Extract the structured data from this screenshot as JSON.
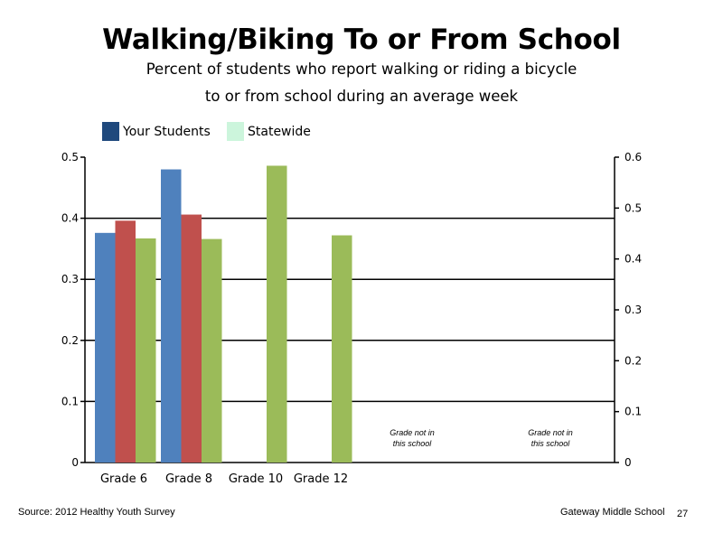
{
  "title": "Walking/Biking To or From School",
  "subtitle_line1": "Percent of students who report walking or riding a bicycle",
  "subtitle_line2": "to or from school during an average week",
  "legend": {
    "items": [
      {
        "label": "Your Students",
        "color": "#1f497d"
      },
      {
        "label": "Statewide",
        "color": "#ccf5dc"
      }
    ]
  },
  "chart_data": {
    "type": "bar",
    "categories": [
      "Grade 6",
      "Grade 8",
      "Grade 10",
      "Grade 12"
    ],
    "series": [
      {
        "values": [
          0.376,
          0.48,
          null,
          null
        ],
        "color": "#4f81bd"
      },
      {
        "values": [
          0.396,
          0.406,
          null,
          null
        ],
        "color": "#c0504d"
      },
      {
        "values": [
          0.367,
          0.366,
          0.486,
          0.372
        ],
        "color": "#9bbb59"
      }
    ],
    "ylim": [
      0,
      0.5
    ],
    "yticks": [
      "0",
      "0.1",
      "0.2",
      "0.3",
      "0.4",
      "0.5"
    ],
    "y2lim": [
      0,
      0.6
    ],
    "y2ticks": [
      "0",
      "0.1",
      "0.2",
      "0.3",
      "0.4",
      "0.5",
      "0.6"
    ],
    "grid": true,
    "annotations": [
      {
        "line1": "Grade not in",
        "line2": "this school"
      },
      {
        "line1": "Grade not in",
        "line2": "this school"
      }
    ]
  },
  "footer": {
    "source": "Source: 2012 Healthy Youth Survey",
    "school": "Gateway Middle  School",
    "page": "27"
  }
}
